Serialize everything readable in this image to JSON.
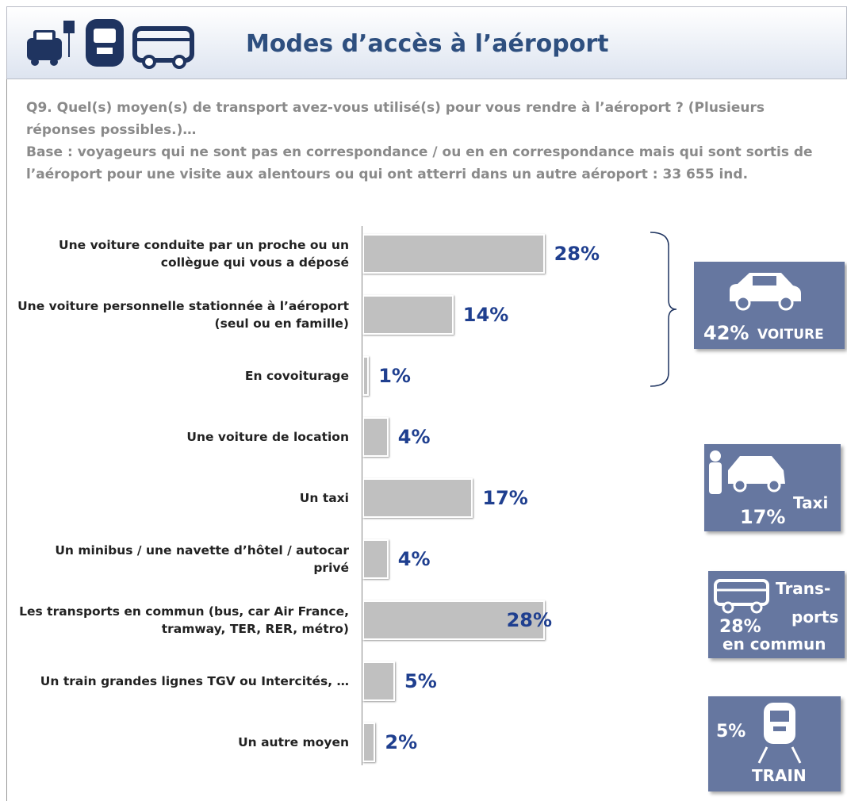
{
  "header": {
    "title": "Modes d’accès à l’aéroport"
  },
  "question": "Q9. Quel(s) moyen(s) de transport avez-vous utilisé(s) pour vous rendre à l’aéroport ? (Plusieurs réponses possibles.)…",
  "base": "Base : voyageurs  qui  ne sont pas en correspondance / ou en en correspondance mais qui sont sortis de l’aéroport pour une visite aux alentours ou qui ont atterri dans un autre aéroport  : 33 655 ind.",
  "chart_data": {
    "type": "bar",
    "orientation": "horizontal",
    "categories": [
      "Une voiture conduite par un proche ou un collègue qui vous a déposé",
      "Une voiture personnelle stationnée à l’aéroport (seul ou en famille)",
      "En covoiturage",
      "Une voiture de location",
      "Un taxi",
      "Un minibus / une navette d’hôtel / autocar privé",
      "Les transports en commun (bus, car Air France, tramway, TER, RER, métro)",
      "Un train grandes lignes TGV ou Intercités, …",
      "Un autre moyen"
    ],
    "values": [
      28,
      14,
      1,
      4,
      17,
      4,
      28,
      5,
      2
    ],
    "value_labels": [
      "28%",
      "14%",
      "1%",
      "4%",
      "17%",
      "4%",
      "28%",
      "5%",
      "2%"
    ],
    "color": "#c0c0c0",
    "label_color": "#1f3f8f"
  },
  "summary": [
    {
      "value": "42%",
      "label": "VOITURE"
    },
    {
      "value": "17%",
      "label": "Taxi"
    },
    {
      "value": "28%",
      "label_lines": [
        "Trans-",
        "ports",
        "en commun"
      ]
    },
    {
      "value": "5%",
      "label": "TRAIN"
    }
  ]
}
